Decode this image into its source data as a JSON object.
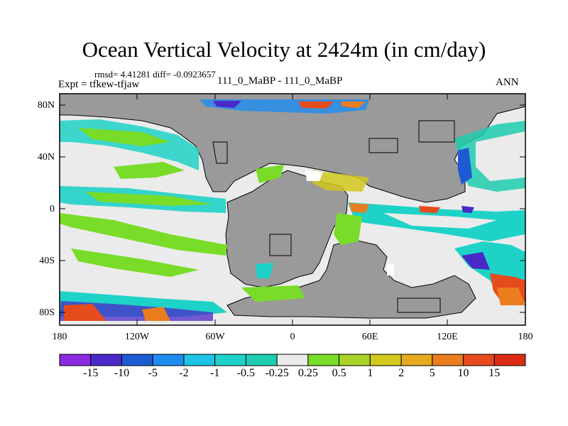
{
  "title": "Ocean Vertical Velocity at 2424m (in cm/day)",
  "stats": "rmsd= 4.41281 diff= -0.0923657",
  "expt_label": "Expt = tfkew-tfjaw",
  "runs_label": "111_0_MaBP - 111_0_MaBP",
  "season": "ANN",
  "lat_labels": [
    "80N",
    "40N",
    "0",
    "40S",
    "80S"
  ],
  "lon_labels": [
    "180",
    "120W",
    "60W",
    "0",
    "60E",
    "120E",
    "180"
  ],
  "colorbar": {
    "labels": [
      "-15",
      "-10",
      "-5",
      "-2",
      "-1",
      "-0.5",
      "-0.25",
      "0.25",
      "0.5",
      "1",
      "2",
      "5",
      "10",
      "15"
    ],
    "colors": [
      "#8a2be2",
      "#4b28c8",
      "#1e5ad2",
      "#1e8cf0",
      "#1ec3e6",
      "#1ed2c8",
      "#1ecdaf",
      "#ebebeb",
      "#78dc28",
      "#aad228",
      "#d2c81e",
      "#e6aa1e",
      "#eb7d1e",
      "#e64b1e",
      "#dc2d14"
    ]
  },
  "colors": {
    "land": "#9a9a9a",
    "near_zero": "#ebebeb",
    "coast": "#000000"
  }
}
